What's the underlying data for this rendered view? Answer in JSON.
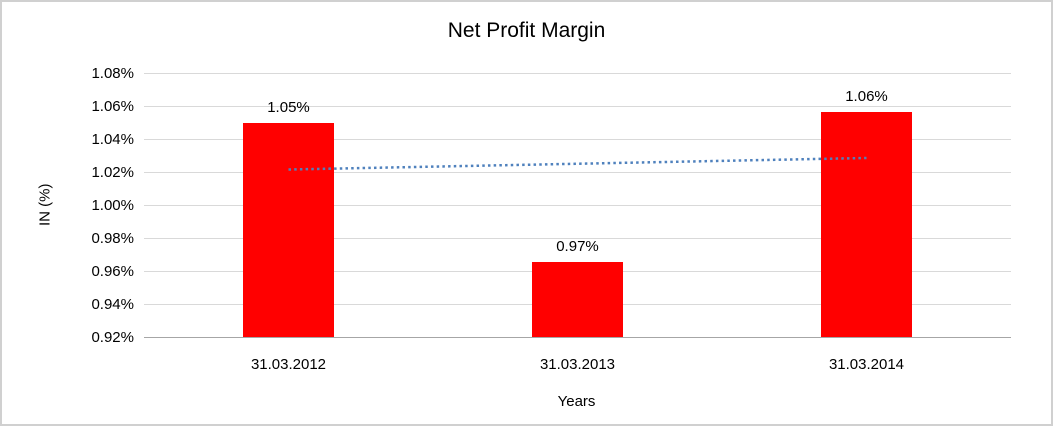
{
  "chart_data": {
    "type": "bar",
    "title": "Net Profit Margin",
    "xlabel": "Years",
    "ylabel": "IN (%)",
    "categories": [
      "31.03.2012",
      "31.03.2013",
      "31.03.2014"
    ],
    "values": [
      1.0497,
      0.9655,
      1.0564
    ],
    "data_labels": [
      "1.05%",
      "0.97%",
      "1.06%"
    ],
    "y_ticks": [
      "1.08%",
      "1.06%",
      "1.04%",
      "1.02%",
      "1.00%",
      "0.98%",
      "0.96%",
      "0.94%",
      "0.92%"
    ],
    "ylim": [
      0.92,
      1.08
    ],
    "y_tick_step": 0.02,
    "grid": true,
    "legend": "none",
    "bar_color": "#ff0000",
    "gridline_color": "#d9d9d9",
    "axis_line_color": "#a6a6a6",
    "trendline": {
      "style": "dotted",
      "color": "#4f81bd",
      "start_value": 1.0215,
      "end_value": 1.0285,
      "start_category_index": 0,
      "end_category_index": 2
    }
  }
}
